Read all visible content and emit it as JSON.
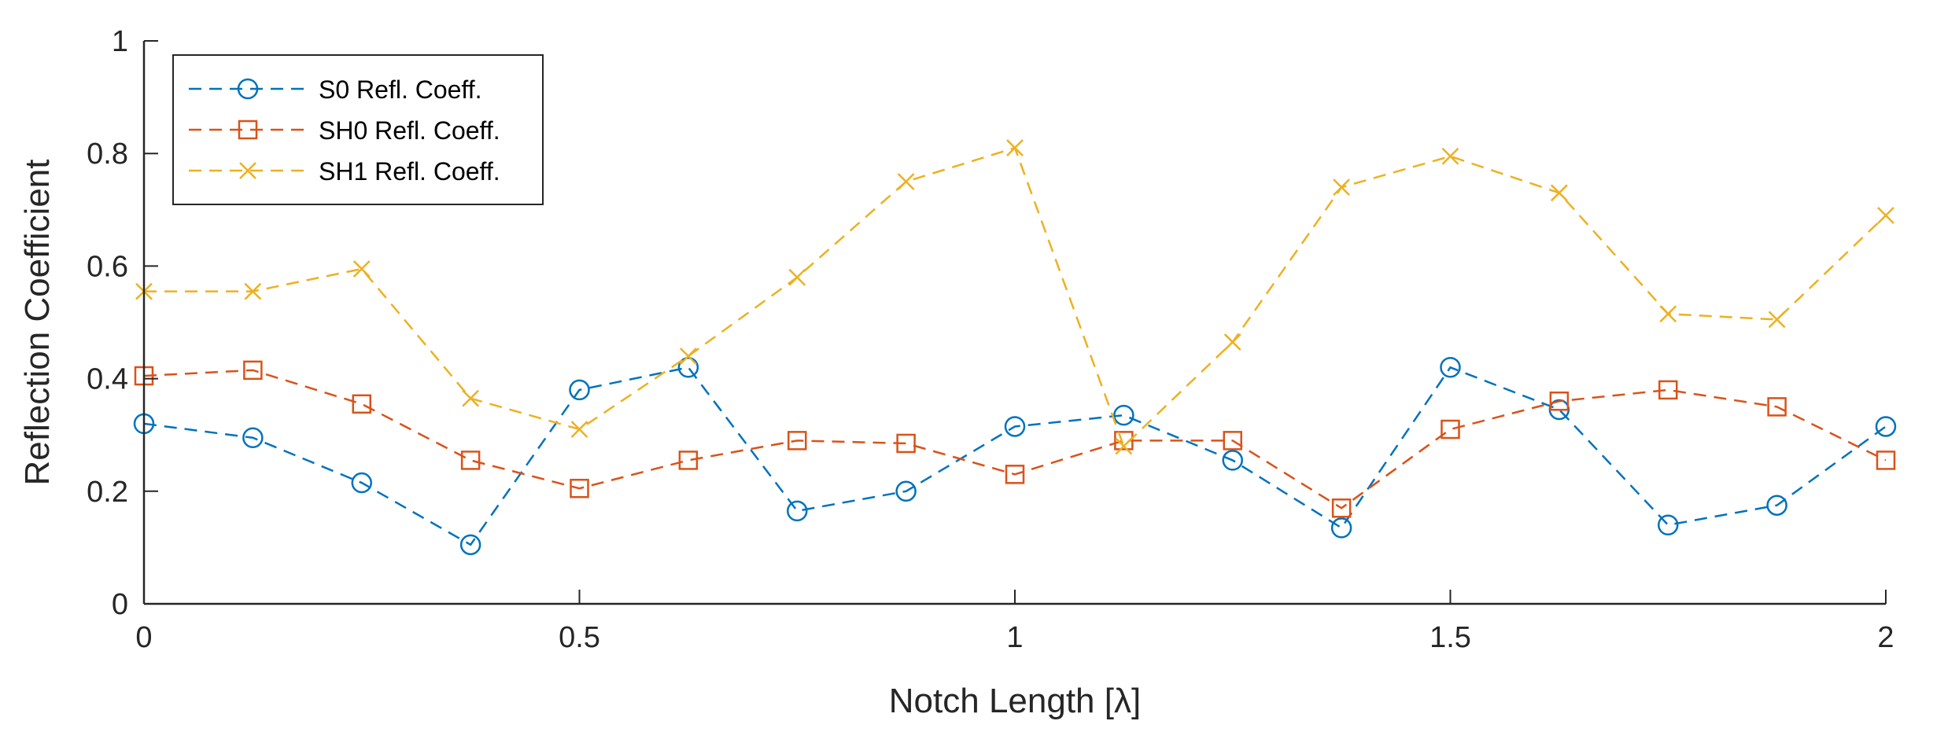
{
  "chart_data": {
    "type": "line",
    "xlabel": "Notch Length [λ]",
    "ylabel": "Reflection Coefficient",
    "xlim": [
      0,
      2
    ],
    "ylim": [
      0,
      1
    ],
    "xticks": [
      0,
      0.5,
      1,
      1.5,
      2
    ],
    "xtick_labels": [
      "0",
      "0.5",
      "1",
      "1.5",
      "2"
    ],
    "yticks": [
      0,
      0.2,
      0.4,
      0.6,
      0.8,
      1
    ],
    "ytick_labels": [
      "0",
      "0.2",
      "0.4",
      "0.6",
      "0.8",
      "1"
    ],
    "grid": false,
    "legend_position": "top-left",
    "x": [
      0,
      0.125,
      0.25,
      0.375,
      0.5,
      0.625,
      0.75,
      0.875,
      1,
      1.125,
      1.25,
      1.375,
      1.5,
      1.625,
      1.75,
      1.875,
      2
    ],
    "series": [
      {
        "name": "S0 Refl. Coeff.",
        "color": "#0072BD",
        "marker": "circle",
        "line_style": "dashed",
        "values": [
          0.32,
          0.295,
          0.215,
          0.105,
          0.38,
          0.42,
          0.165,
          0.2,
          0.315,
          0.335,
          0.255,
          0.135,
          0.42,
          0.345,
          0.14,
          0.175,
          0.315
        ]
      },
      {
        "name": "SH0 Refl. Coeff.",
        "color": "#D95319",
        "marker": "square",
        "line_style": "dashed",
        "values": [
          0.405,
          0.415,
          0.355,
          0.255,
          0.205,
          0.255,
          0.29,
          0.285,
          0.23,
          0.29,
          0.29,
          0.17,
          0.31,
          0.36,
          0.38,
          0.35,
          0.255
        ]
      },
      {
        "name": "SH1 Refl. Coeff.",
        "color": "#EDB120",
        "marker": "x",
        "line_style": "dashed",
        "values": [
          0.555,
          0.555,
          0.595,
          0.365,
          0.31,
          0.44,
          0.58,
          0.75,
          0.81,
          0.28,
          0.465,
          0.74,
          0.795,
          0.73,
          0.515,
          0.505,
          0.69
        ]
      }
    ]
  }
}
